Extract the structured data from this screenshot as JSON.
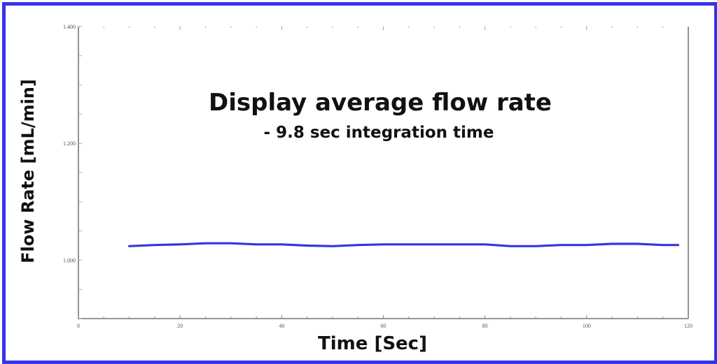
{
  "chart_data": {
    "type": "line",
    "title": "Display average flow rate",
    "subtitle": "- 9.8 sec integration time",
    "xlabel": "Time [Sec]",
    "ylabel": "Flow Rate [mL/min]",
    "xlim": [
      0,
      120
    ],
    "ylim": [
      0.9,
      1.4
    ],
    "x_ticks": [
      0,
      20,
      40,
      60,
      80,
      100,
      120
    ],
    "x_tick_labels": [
      "0",
      "20",
      "40",
      "60",
      "80",
      "100",
      "120"
    ],
    "y_ticks": [
      1.0,
      1.2,
      1.4
    ],
    "y_tick_labels": [
      "1.000",
      "1.200",
      "1.400"
    ],
    "grid": false,
    "legend": null,
    "series": [
      {
        "name": "Average flow rate",
        "color": "#3535e0",
        "x": [
          10,
          15,
          20,
          25,
          30,
          35,
          40,
          45,
          50,
          55,
          60,
          65,
          70,
          75,
          80,
          85,
          90,
          95,
          100,
          105,
          110,
          115,
          118
        ],
        "y": [
          1.024,
          1.026,
          1.027,
          1.029,
          1.029,
          1.027,
          1.027,
          1.025,
          1.024,
          1.026,
          1.027,
          1.027,
          1.027,
          1.027,
          1.027,
          1.024,
          1.024,
          1.026,
          1.026,
          1.028,
          1.028,
          1.026,
          1.026
        ]
      }
    ]
  },
  "frame": {
    "border_color": "#3434ee"
  }
}
